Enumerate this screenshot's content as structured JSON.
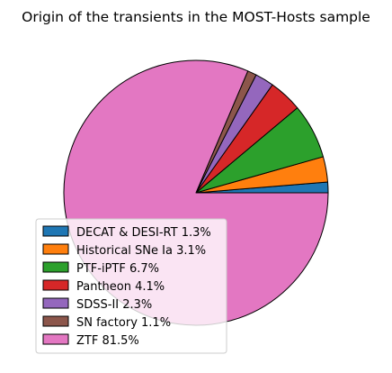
{
  "chart_data": {
    "type": "pie",
    "title": "Origin of the transients in the MOST-Hosts sample",
    "start_angle_deg": 0,
    "direction": "counterclockwise",
    "legend_position": "lower-left",
    "slices": [
      {
        "label": "DECAT & DESI-RT 1.3%",
        "name": "DECAT & DESI-RT",
        "value": 1.3,
        "color": "#1f77b4"
      },
      {
        "label": "Historical SNe Ia 3.1%",
        "name": "Historical SNe Ia",
        "value": 3.1,
        "color": "#ff7f0e"
      },
      {
        "label": "PTF-iPTF 6.7%",
        "name": "PTF-iPTF",
        "value": 6.7,
        "color": "#2ca02c"
      },
      {
        "label": "Pantheon 4.1%",
        "name": "Pantheon",
        "value": 4.1,
        "color": "#d62728"
      },
      {
        "label": "SDSS-II 2.3%",
        "name": "SDSS-II",
        "value": 2.3,
        "color": "#9467bd"
      },
      {
        "label": "SN factory 1.1%",
        "name": "SN factory",
        "value": 1.1,
        "color": "#8c564b"
      },
      {
        "label": "ZTF 81.5%",
        "name": "ZTF",
        "value": 81.5,
        "color": "#e377c2"
      }
    ]
  }
}
